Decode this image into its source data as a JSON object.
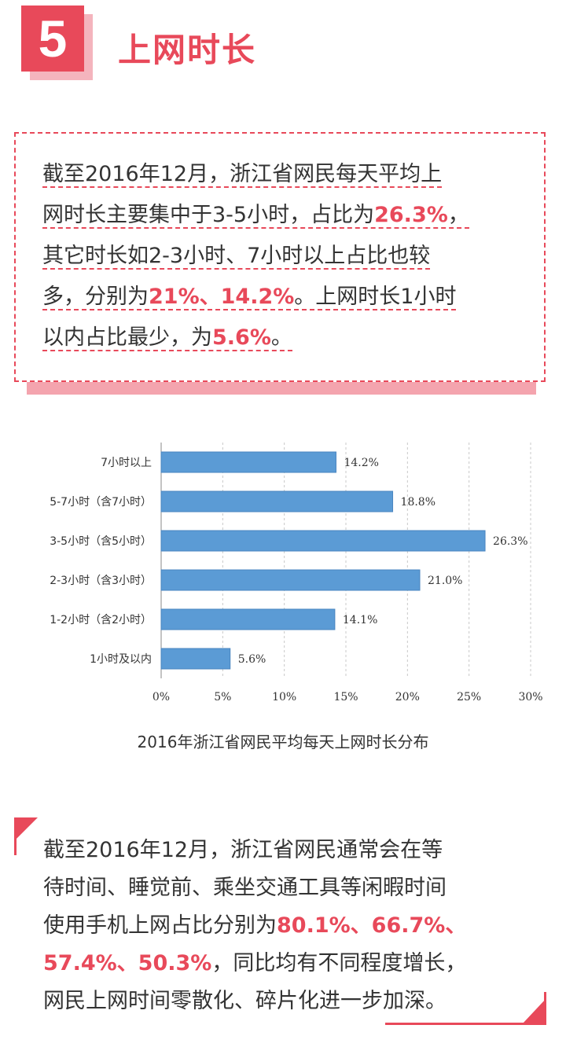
{
  "section": {
    "number": "5",
    "title": "上网时长"
  },
  "box1": {
    "lines": [
      [
        {
          "t": "截至2016年12月，浙江省网民每天平均上",
          "hl": false
        }
      ],
      [
        {
          "t": "网时长主要集中于3-5小时，占比为",
          "hl": false
        },
        {
          "t": "26.3%",
          "hl": true
        },
        {
          "t": "，",
          "hl": false
        }
      ],
      [
        {
          "t": "其它时长如2-3小时、7小时以上占比也较",
          "hl": false
        }
      ],
      [
        {
          "t": "多，分别为",
          "hl": false
        },
        {
          "t": "21%、14.2%",
          "hl": true
        },
        {
          "t": "。上网时长1小时",
          "hl": false
        }
      ],
      [
        {
          "t": "以内占比最少，为",
          "hl": false
        },
        {
          "t": "5.6%",
          "hl": true
        },
        {
          "t": "。",
          "hl": false
        }
      ]
    ]
  },
  "chart_data": {
    "type": "bar",
    "orientation": "horizontal",
    "categories": [
      "7小时以上",
      "5-7小时（含7小时）",
      "3-5小时（含5小时）",
      "2-3小时（含3小时）",
      "1-2小时（含2小时）",
      "1小时及以内"
    ],
    "values": [
      14.2,
      18.8,
      26.3,
      21.0,
      14.1,
      5.6
    ],
    "value_labels": [
      "14.2%",
      "18.8%",
      "26.3%",
      "21.0%",
      "14.1%",
      "5.6%"
    ],
    "xlim": [
      0,
      30
    ],
    "xticks": [
      0,
      5,
      10,
      15,
      20,
      25,
      30
    ],
    "xtick_labels": [
      "0%",
      "5%",
      "10%",
      "15%",
      "20%",
      "25%",
      "30%"
    ],
    "grid": "vertical dashed",
    "bar_color": "#5b9bd5",
    "title": "2016年浙江省网民平均每天上网时长分布",
    "xlabel": "",
    "ylabel": ""
  },
  "box2": {
    "lines": [
      [
        {
          "t": "截至2016年12月，浙江省网民通常会在等",
          "hl": false
        }
      ],
      [
        {
          "t": "待时间、睡觉前、乘坐交通工具等闲暇时间",
          "hl": false
        }
      ],
      [
        {
          "t": "使用手机上网占比分别为",
          "hl": false
        },
        {
          "t": "80.1%、66.7%、",
          "hl": true
        }
      ],
      [
        {
          "t": "57.4%、50.3%",
          "hl": true
        },
        {
          "t": "，同比均有不同程度增长，",
          "hl": false
        }
      ],
      [
        {
          "t": "网民上网时间零散化、碎片化进一步加深。",
          "hl": false
        }
      ]
    ]
  },
  "colors": {
    "accent": "#e8495a",
    "accent_light": "#f4a4ae",
    "bar": "#5b9bd5"
  }
}
